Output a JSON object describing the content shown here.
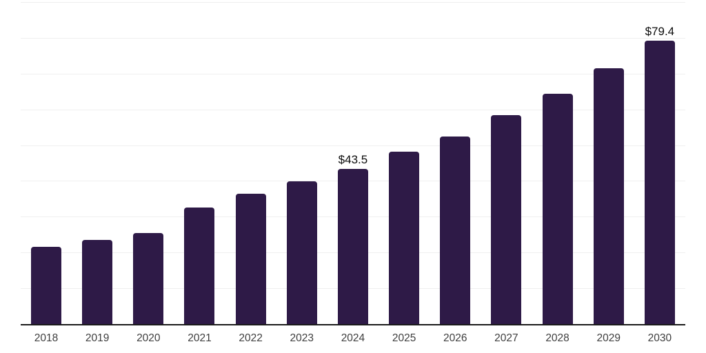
{
  "chart": {
    "background_color": "#ffffff",
    "bar_color": "#2e1a47",
    "grid_color": "#efefef",
    "axis_line_color": "#1a1a1a",
    "tick_label_color": "#3d3d3d",
    "data_label_color": "#0b0b0b"
  },
  "chart_data": {
    "type": "bar",
    "title": "",
    "xlabel": "",
    "ylabel": "",
    "categories": [
      "2018",
      "2019",
      "2020",
      "2021",
      "2022",
      "2023",
      "2024",
      "2025",
      "2026",
      "2027",
      "2028",
      "2029",
      "2030"
    ],
    "values": [
      21.7,
      23.7,
      25.6,
      32.7,
      36.7,
      40.0,
      43.5,
      48.3,
      52.7,
      58.5,
      64.6,
      71.7,
      79.4
    ],
    "data_labels": {
      "2024": "$43.5",
      "2030": "$79.4"
    },
    "ylim": [
      0,
      90
    ],
    "grid_step": 10,
    "grid": "horizontal",
    "y_axis_tick_labels_visible": false,
    "legend": "none"
  }
}
